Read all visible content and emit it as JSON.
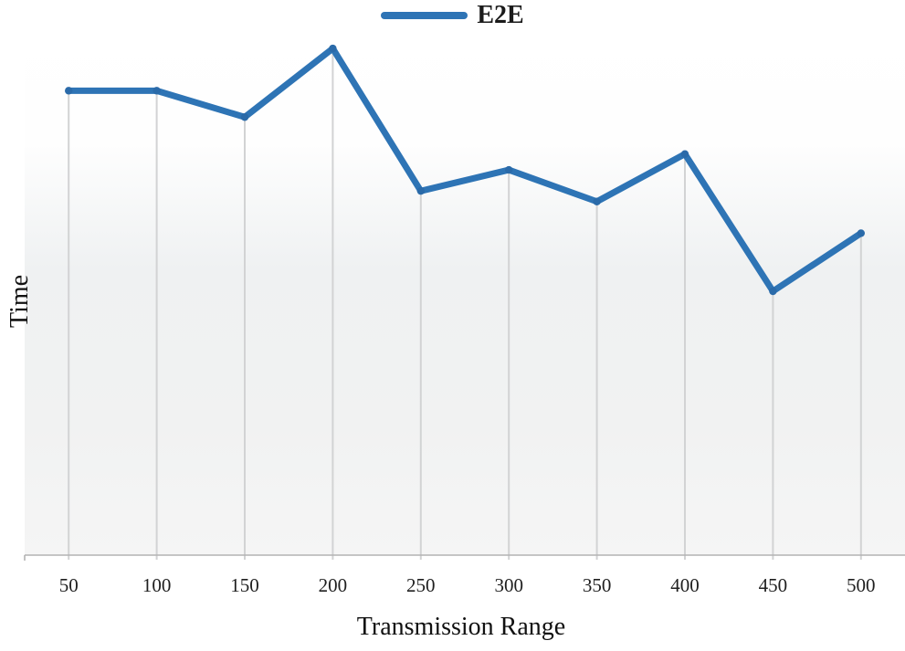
{
  "chart_data": {
    "type": "line",
    "title": "",
    "x": [
      50,
      100,
      150,
      200,
      250,
      300,
      350,
      400,
      450,
      500
    ],
    "series": [
      {
        "name": "E2E",
        "values": [
          88,
          88,
          83,
          96,
          69,
          73,
          67,
          76,
          50,
          61
        ],
        "color": "#2E74B5",
        "marker_color": "#2A6AA9"
      }
    ],
    "xlabel": "Transmission Range",
    "ylabel": "Time",
    "ylim": [
      0,
      100
    ],
    "y_values_are_relative_estimates": true,
    "y_axis_tick_labels_visible": false,
    "gridlines": "vertical drop lines from each point to x-axis",
    "legend_position": "top-center",
    "axis_color": "#b3b3b3",
    "drop_line_color": "#d2d3d4",
    "tick_label_color": "#1f1f1f"
  }
}
